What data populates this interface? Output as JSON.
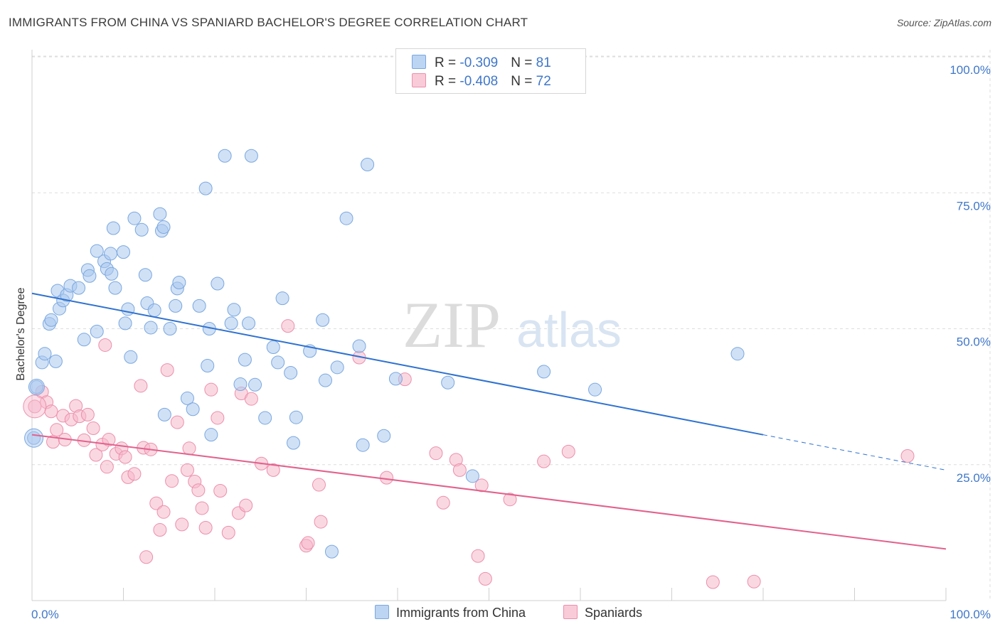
{
  "title": "IMMIGRANTS FROM CHINA VS SPANIARD BACHELOR'S DEGREE CORRELATION CHART",
  "source": "Source: ZipAtlas.com",
  "watermark": {
    "zip": "ZIP",
    "atlas": "atlas"
  },
  "legend": {
    "china": {
      "r_label": "R = ",
      "r_value": "-0.309",
      "n_label": "N = ",
      "n_value": "81"
    },
    "spain": {
      "r_label": "R = ",
      "r_value": "-0.408",
      "n_label": "N = ",
      "n_value": "72"
    }
  },
  "colors": {
    "china_fill": "#a9c8ef",
    "china_stroke": "#7aa7df",
    "china_line": "#2f72d0",
    "spain_fill": "#f6b8cb",
    "spain_stroke": "#ec8fac",
    "spain_line": "#e2628d",
    "tick_text": "#3f77c9",
    "grid": "#dddddd"
  },
  "chart_data": {
    "type": "scatter",
    "title": "IMMIGRANTS FROM CHINA VS SPANIARD BACHELOR'S DEGREE CORRELATION CHART",
    "xlabel": "",
    "ylabel": "Bachelor's Degree",
    "xlim": [
      0,
      100
    ],
    "ylim": [
      0,
      100
    ],
    "x_tick_labels": [
      "0.0%",
      "100.0%"
    ],
    "y_tick_labels": [
      "25.0%",
      "50.0%",
      "75.0%",
      "100.0%"
    ],
    "y_ticks": [
      25,
      50,
      75,
      100
    ],
    "grid": "horizontal dashed",
    "legend_position": "top-center",
    "series": [
      {
        "name": "Immigrants from China",
        "r": -0.309,
        "n": 81,
        "trend": {
          "x0": 0,
          "y0": 56.5,
          "x1": 80,
          "y1": 30.5,
          "dash_to_x": 100,
          "dash_to_y": 24.0
        },
        "points": [
          [
            0.2,
            29.9
          ],
          [
            0.5,
            39.3
          ],
          [
            1.1,
            43.8
          ],
          [
            1.4,
            45.4
          ],
          [
            1.9,
            50.9
          ],
          [
            2.1,
            51.6
          ],
          [
            2.6,
            44.0
          ],
          [
            2.8,
            57.0
          ],
          [
            3.0,
            53.7
          ],
          [
            3.4,
            55.2
          ],
          [
            3.8,
            56.2
          ],
          [
            4.2,
            57.9
          ],
          [
            5.1,
            57.5
          ],
          [
            5.7,
            48.0
          ],
          [
            6.1,
            60.8
          ],
          [
            6.3,
            59.7
          ],
          [
            7.1,
            64.3
          ],
          [
            7.1,
            49.5
          ],
          [
            7.9,
            62.4
          ],
          [
            8.2,
            61.0
          ],
          [
            8.6,
            63.8
          ],
          [
            8.7,
            60.1
          ],
          [
            8.9,
            68.5
          ],
          [
            9.1,
            57.5
          ],
          [
            10.0,
            64.1
          ],
          [
            10.2,
            51.0
          ],
          [
            10.5,
            53.6
          ],
          [
            10.8,
            44.8
          ],
          [
            11.2,
            70.3
          ],
          [
            12.0,
            68.2
          ],
          [
            12.4,
            59.9
          ],
          [
            12.6,
            54.7
          ],
          [
            13.0,
            50.2
          ],
          [
            13.4,
            53.4
          ],
          [
            14.0,
            71.1
          ],
          [
            14.2,
            68.0
          ],
          [
            14.4,
            68.7
          ],
          [
            14.5,
            34.2
          ],
          [
            15.1,
            50.0
          ],
          [
            15.7,
            54.2
          ],
          [
            15.9,
            57.4
          ],
          [
            16.1,
            58.5
          ],
          [
            17.0,
            37.2
          ],
          [
            17.6,
            35.2
          ],
          [
            18.3,
            54.2
          ],
          [
            19.0,
            75.8
          ],
          [
            19.2,
            43.2
          ],
          [
            19.4,
            50.0
          ],
          [
            19.6,
            30.5
          ],
          [
            20.3,
            58.3
          ],
          [
            21.1,
            81.8
          ],
          [
            21.8,
            51.0
          ],
          [
            22.1,
            53.5
          ],
          [
            22.8,
            39.8
          ],
          [
            23.3,
            44.3
          ],
          [
            23.7,
            51.0
          ],
          [
            24.0,
            81.8
          ],
          [
            24.4,
            39.7
          ],
          [
            25.5,
            33.6
          ],
          [
            26.4,
            46.6
          ],
          [
            26.9,
            43.8
          ],
          [
            27.4,
            55.6
          ],
          [
            28.3,
            41.9
          ],
          [
            28.6,
            29.0
          ],
          [
            28.9,
            33.7
          ],
          [
            30.4,
            45.9
          ],
          [
            31.8,
            51.6
          ],
          [
            32.1,
            40.5
          ],
          [
            32.8,
            9.0
          ],
          [
            33.4,
            42.9
          ],
          [
            34.4,
            70.3
          ],
          [
            35.8,
            46.8
          ],
          [
            36.2,
            28.6
          ],
          [
            36.7,
            80.2
          ],
          [
            38.5,
            30.3
          ],
          [
            39.8,
            40.8
          ],
          [
            45.5,
            40.1
          ],
          [
            48.2,
            22.9
          ],
          [
            56.0,
            42.1
          ],
          [
            61.6,
            38.8
          ],
          [
            77.2,
            45.4
          ]
        ]
      },
      {
        "name": "Spaniards",
        "r": -0.408,
        "n": 72,
        "trend": {
          "x0": 0,
          "y0": 30.5,
          "x1": 100,
          "y1": 9.5
        },
        "points": [
          [
            0.3,
            35.7
          ],
          [
            1.1,
            38.4
          ],
          [
            1.6,
            36.5
          ],
          [
            2.1,
            34.8
          ],
          [
            2.3,
            29.2
          ],
          [
            2.7,
            31.4
          ],
          [
            3.4,
            34.0
          ],
          [
            3.6,
            29.6
          ],
          [
            4.3,
            33.3
          ],
          [
            4.8,
            35.8
          ],
          [
            5.2,
            33.9
          ],
          [
            5.7,
            29.5
          ],
          [
            6.1,
            34.2
          ],
          [
            6.7,
            31.7
          ],
          [
            7.0,
            26.8
          ],
          [
            7.7,
            28.7
          ],
          [
            8.0,
            47.0
          ],
          [
            8.2,
            24.6
          ],
          [
            8.4,
            29.6
          ],
          [
            9.2,
            27.0
          ],
          [
            9.8,
            28.0
          ],
          [
            10.2,
            26.4
          ],
          [
            10.5,
            22.7
          ],
          [
            11.2,
            23.3
          ],
          [
            11.9,
            39.5
          ],
          [
            12.2,
            28.1
          ],
          [
            12.5,
            8.0
          ],
          [
            13.0,
            27.8
          ],
          [
            13.6,
            17.9
          ],
          [
            14.0,
            13.0
          ],
          [
            14.4,
            16.3
          ],
          [
            14.8,
            42.4
          ],
          [
            15.3,
            22.0
          ],
          [
            15.9,
            32.8
          ],
          [
            16.4,
            14.0
          ],
          [
            17.0,
            24.0
          ],
          [
            17.2,
            28.0
          ],
          [
            17.8,
            21.9
          ],
          [
            18.2,
            20.3
          ],
          [
            18.6,
            17.0
          ],
          [
            19.0,
            13.4
          ],
          [
            19.6,
            38.8
          ],
          [
            20.3,
            33.6
          ],
          [
            20.6,
            20.2
          ],
          [
            21.5,
            12.5
          ],
          [
            22.6,
            16.1
          ],
          [
            22.9,
            38.1
          ],
          [
            23.4,
            17.5
          ],
          [
            24.0,
            37.1
          ],
          [
            25.1,
            25.2
          ],
          [
            26.4,
            24.0
          ],
          [
            28.0,
            50.5
          ],
          [
            30.0,
            10.1
          ],
          [
            30.2,
            10.6
          ],
          [
            31.4,
            21.3
          ],
          [
            31.6,
            14.5
          ],
          [
            35.8,
            44.7
          ],
          [
            38.8,
            22.6
          ],
          [
            40.8,
            40.7
          ],
          [
            44.2,
            27.1
          ],
          [
            45.0,
            18.0
          ],
          [
            46.4,
            25.9
          ],
          [
            46.8,
            24.0
          ],
          [
            48.8,
            8.2
          ],
          [
            49.2,
            21.2
          ],
          [
            49.6,
            4.0
          ],
          [
            52.3,
            18.6
          ],
          [
            56.0,
            25.6
          ],
          [
            58.7,
            27.4
          ],
          [
            74.5,
            3.4
          ],
          [
            79.0,
            3.5
          ],
          [
            95.8,
            26.6
          ]
        ]
      }
    ]
  },
  "bottom_legend": {
    "china_label": "Immigrants from China",
    "spain_label": "Spaniards"
  }
}
